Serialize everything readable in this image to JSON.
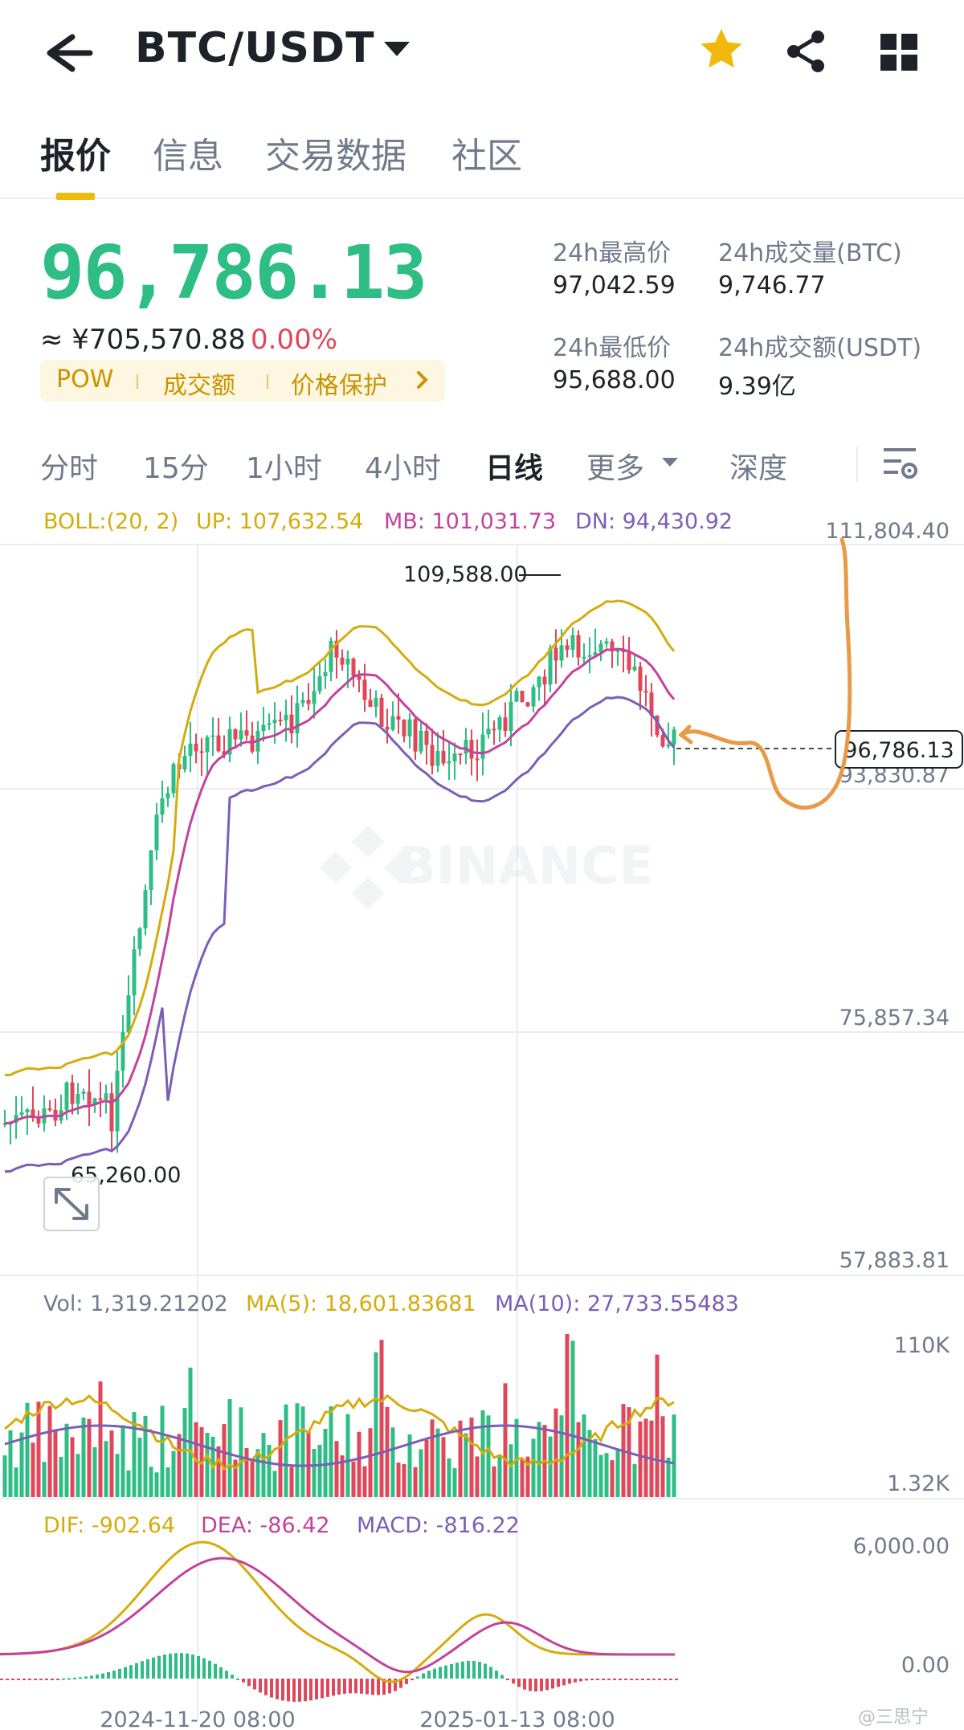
{
  "header": {
    "pair": "BTC/USDT",
    "icons": {
      "back": "back-arrow-icon",
      "caret": "caret-down-icon",
      "favorite": "star-icon",
      "share": "share-icon",
      "grid": "grid-icon"
    },
    "favorite_color": "#f0b90b"
  },
  "tabs": [
    {
      "label": "报价",
      "active": true
    },
    {
      "label": "信息",
      "active": false
    },
    {
      "label": "交易数据",
      "active": false
    },
    {
      "label": "社区",
      "active": false
    }
  ],
  "price": {
    "last": "96,786.13",
    "cny": "≈ ¥705,570.88",
    "change": "0.00%",
    "up_color": "#2ebd85",
    "down_color": "#e0475a"
  },
  "tags": [
    "POW",
    "成交额",
    "价格保护"
  ],
  "stats": {
    "high_label": "24h最高价",
    "high_value": "97,042.59",
    "vol_btc_label": "24h成交量(BTC)",
    "vol_btc_value": "9,746.77",
    "low_label": "24h最低价",
    "low_value": "95,688.00",
    "vol_usdt_label": "24h成交额(USDT)",
    "vol_usdt_value": "9.39亿"
  },
  "intervals": [
    "分时",
    "15分",
    "1小时",
    "4小时",
    "日线",
    "更多",
    "深度"
  ],
  "active_interval": "日线",
  "chart": {
    "boll": {
      "params": "BOLL:(20, 2)",
      "up": "UP: 107,632.54",
      "mb": "MB: 101,031.73",
      "dn": "DN: 94,430.92"
    },
    "price_axis": [
      "111,804.40",
      "93,830.87",
      "75,857.34",
      "57,883.81"
    ],
    "high_marker": "109,588.00",
    "low_marker": "65,260.00",
    "last_price_tag": "96,786.13",
    "volume": {
      "vol": "Vol: 1,319.21202",
      "ma5": "MA(5): 18,601.83681",
      "ma10": "MA(10): 27,733.55483",
      "axis_top": "110K",
      "axis_bottom": "1.32K"
    },
    "macd": {
      "dif": "DIF: -902.64",
      "dea": "DEA: -86.42",
      "macd": "MACD: -816.22",
      "axis_top": "6,000.00",
      "axis_zero": "0.00"
    },
    "dates": [
      "2024-11-20 08:00",
      "2025-01-13 08:00"
    ],
    "watermark": "BINANCE"
  },
  "chart_data": {
    "type": "candlestick",
    "interval": "1d",
    "price_range": [
      57883.81,
      111804.4
    ],
    "last_price": 96786.13,
    "period_high": 109588.0,
    "period_low": 65260.0,
    "boll_upper": 107632.54,
    "boll_mid": 101031.73,
    "boll_lower": 94430.92,
    "macd_dif": -902.64,
    "macd_dea": -86.42,
    "macd_hist": -816.22
  },
  "footer_credit": "@三思宁"
}
